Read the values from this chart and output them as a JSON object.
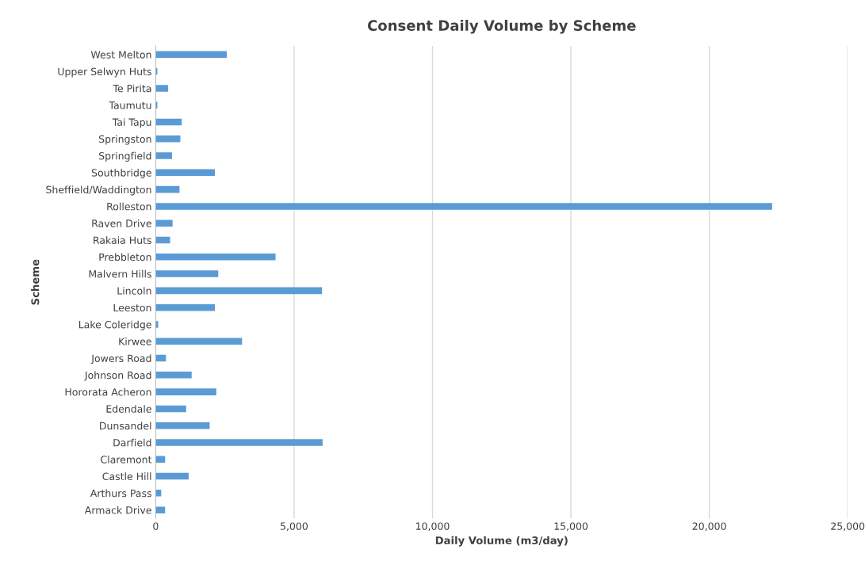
{
  "chart_data": {
    "type": "bar",
    "orientation": "horizontal",
    "title": "Consent Daily Volume by Scheme",
    "xlabel": "Daily Volume (m3/day)",
    "ylabel": "Scheme",
    "categories": [
      "West Melton",
      "Upper Selwyn Huts",
      "Te Pirita",
      "Taumutu",
      "Tai Tapu",
      "Springston",
      "Springfield",
      "Southbridge",
      "Sheffield/Waddington",
      "Rolleston",
      "Raven Drive",
      "Rakaia Huts",
      "Prebbleton",
      "Malvern Hills",
      "Lincoln",
      "Leeston",
      "Lake Coleridge",
      "Kirwee",
      "Jowers Road",
      "Johnson Road",
      "Hororata Acheron",
      "Edendale",
      "Dunsandel",
      "Darfield",
      "Claremont",
      "Castle Hill",
      "Arthurs Pass",
      "Armack Drive"
    ],
    "values": [
      2570,
      60,
      450,
      60,
      940,
      890,
      590,
      2140,
      860,
      22270,
      610,
      520,
      4330,
      2260,
      6010,
      2140,
      90,
      3120,
      370,
      1300,
      2190,
      1100,
      1950,
      6030,
      340,
      1190,
      200,
      340
    ],
    "color": "#5b9bd5",
    "xlim": [
      0,
      25000
    ],
    "xticks": [
      {
        "value": 0,
        "label": "0"
      },
      {
        "value": 5000,
        "label": "5,000"
      },
      {
        "value": 10000,
        "label": "10,000"
      },
      {
        "value": 15000,
        "label": "15,000"
      },
      {
        "value": 20000,
        "label": "20,000"
      },
      {
        "value": 25000,
        "label": "25,000"
      }
    ],
    "grid": "x",
    "legend": false
  }
}
